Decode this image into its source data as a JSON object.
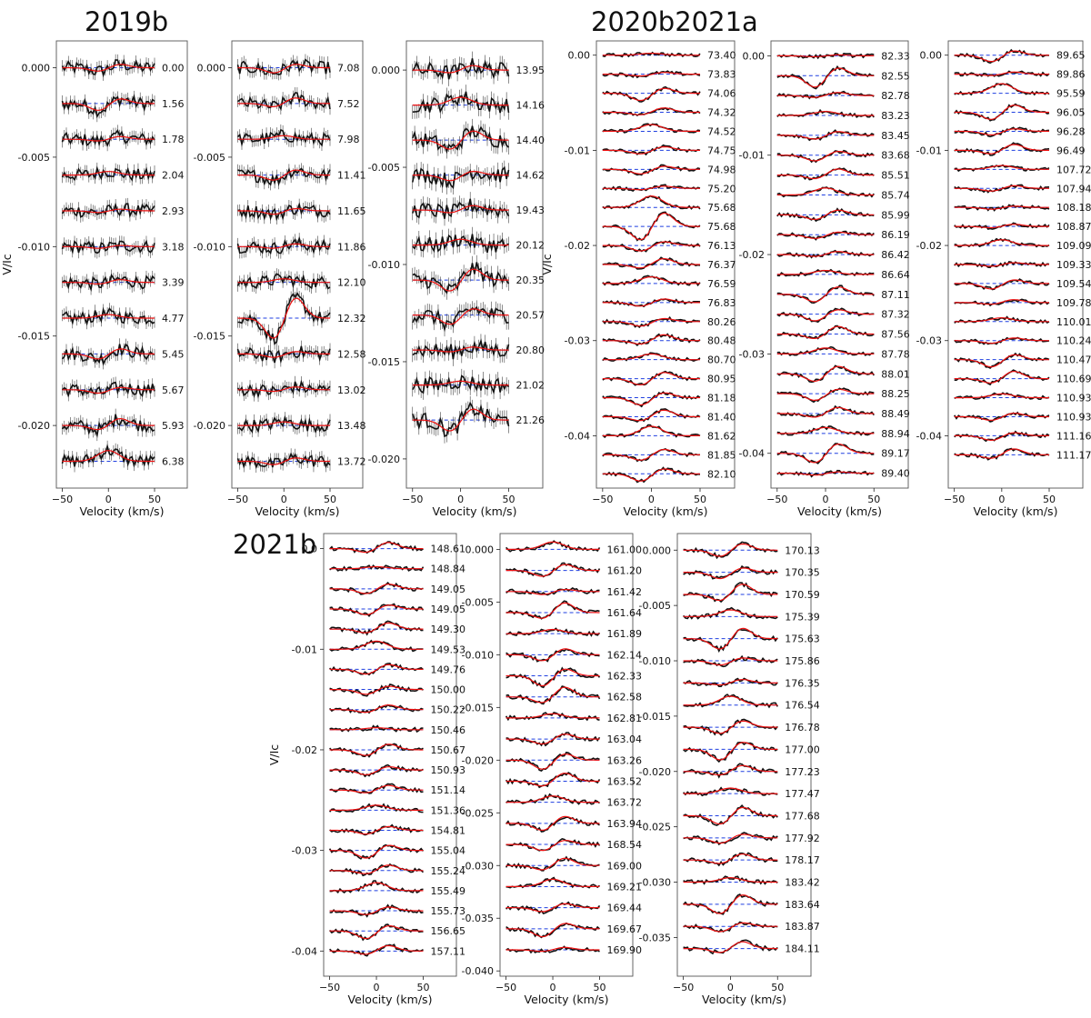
{
  "section_titles": [
    "2019b",
    "2020b2021a",
    "2021b"
  ],
  "chart_data": [
    {
      "type": "line",
      "group": "2019b",
      "xlabel": "Velocity (km/s)",
      "ylabel": "V/Ic",
      "xlim": [
        -50,
        50
      ],
      "ylim": [
        -0.0235,
        0.0015
      ],
      "xticks": [
        -50,
        0,
        50
      ],
      "yticks": [
        0,
        -0.005,
        -0.01,
        -0.015,
        -0.02
      ],
      "ytick_labels": [
        "0.000",
        "-0.005",
        "-0.010",
        "-0.015",
        "-0.020"
      ],
      "offset_step": -0.002,
      "labels": [
        "0.00",
        "1.56",
        "1.78",
        "2.04",
        "2.93",
        "3.18",
        "3.39",
        "4.77",
        "5.45",
        "5.67",
        "5.93",
        "6.38"
      ],
      "feature_amp": [
        0.0002,
        0.0004,
        0.0002,
        0.0002,
        0.0001,
        0.0001,
        0.0002,
        0.0002,
        0.0003,
        0.0002,
        0.0005,
        0.0006
      ],
      "noise": 0.00035,
      "error_bars": true
    },
    {
      "type": "line",
      "group": "2019b",
      "xlabel": "Velocity (km/s)",
      "ylabel": "",
      "xlim": [
        -50,
        50
      ],
      "ylim": [
        -0.0235,
        0.0015
      ],
      "xticks": [
        -50,
        0,
        50
      ],
      "yticks": [
        0,
        -0.005,
        -0.01,
        -0.015,
        -0.02
      ],
      "ytick_labels": [
        "0.000",
        "-0.005",
        "-0.010",
        "-0.015",
        "-0.020"
      ],
      "offset_step": -0.002,
      "labels": [
        "7.08",
        "7.52",
        "7.98",
        "11.41",
        "11.65",
        "11.86",
        "12.10",
        "12.32",
        "12.58",
        "13.02",
        "13.48",
        "13.72"
      ],
      "feature_amp": [
        0.0003,
        0.0004,
        0.0002,
        0.0003,
        0.0002,
        0.0002,
        0.0002,
        0.0012,
        0.0002,
        0.0002,
        0.0002,
        0.0002
      ],
      "noise": 0.00035,
      "error_bars": true
    },
    {
      "type": "line",
      "group": "2019b",
      "xlabel": "Velocity (km/s)",
      "ylabel": "",
      "xlim": [
        -50,
        50
      ],
      "ylim": [
        -0.0215,
        0.0015
      ],
      "xticks": [
        -50,
        0,
        50
      ],
      "yticks": [
        0,
        -0.005,
        -0.01,
        -0.015,
        -0.02
      ],
      "ytick_labels": [
        "0.000",
        "-0.005",
        "-0.010",
        "-0.015",
        "-0.020"
      ],
      "offset_step": -0.0018,
      "labels": [
        "13.95",
        "14.16",
        "14.40",
        "14.62",
        "19.43",
        "20.12",
        "20.35",
        "20.57",
        "20.80",
        "21.02",
        "21.26"
      ],
      "feature_amp": [
        0.0003,
        0.0004,
        0.0005,
        0.0003,
        0.0003,
        0.0003,
        0.0006,
        0.0005,
        0.0002,
        0.0002,
        0.0006
      ],
      "noise": 0.0004,
      "error_bars": true
    },
    {
      "type": "line",
      "group": "2020b2021a",
      "xlabel": "Velocity (km/s)",
      "ylabel": "V/Ic",
      "xlim": [
        -50,
        50
      ],
      "ylim": [
        -0.0455,
        0.0015
      ],
      "xticks": [
        -50,
        0,
        50
      ],
      "yticks": [
        0,
        -0.01,
        -0.02,
        -0.03,
        -0.04
      ],
      "ytick_labels": [
        "0.00",
        "-0.01",
        "-0.02",
        "-0.03",
        "-0.04"
      ],
      "offset_step": -0.002,
      "labels": [
        "73.40",
        "73.83",
        "74.06",
        "74.32",
        "74.52",
        "74.75",
        "74.98",
        "75.20",
        "75.68",
        "75.68",
        "76.13",
        "76.37",
        "76.59",
        "76.83",
        "80.26",
        "80.48",
        "80.70",
        "80.95",
        "81.18",
        "81.40",
        "81.62",
        "81.85",
        "82.10"
      ],
      "feature_amp": [
        0.0002,
        0.0002,
        0.0008,
        0.0006,
        0.0007,
        0.0004,
        0.0005,
        0.0003,
        0.0012,
        0.0015,
        0.0006,
        0.0008,
        0.0007,
        0.0004,
        0.0005,
        0.0008,
        0.0006,
        0.0007,
        0.0008,
        0.0009,
        0.001,
        0.0006,
        0.0008
      ],
      "noise": 0.00018,
      "error_bars": false
    },
    {
      "type": "line",
      "group": "2020b2021a",
      "xlabel": "Velocity (km/s)",
      "ylabel": "",
      "xlim": [
        -50,
        50
      ],
      "ylim": [
        -0.0435,
        0.0015
      ],
      "xticks": [
        -50,
        0,
        50
      ],
      "yticks": [
        0,
        -0.01,
        -0.02,
        -0.03,
        -0.04
      ],
      "ytick_labels": [
        "0.00",
        "-0.01",
        "-0.02",
        "-0.03",
        "-0.04"
      ],
      "offset_step": -0.002,
      "labels": [
        "82.33",
        "82.55",
        "82.78",
        "83.23",
        "83.45",
        "83.68",
        "85.51",
        "85.74",
        "85.99",
        "86.19",
        "86.42",
        "86.64",
        "87.11",
        "87.32",
        "87.56",
        "87.78",
        "88.01",
        "88.25",
        "88.49",
        "88.94",
        "89.17",
        "89.40"
      ],
      "feature_amp": [
        0.0001,
        0.0012,
        0.0004,
        0.0004,
        0.0004,
        0.0006,
        0.0008,
        0.0007,
        0.0005,
        0.0004,
        0.0004,
        0.0004,
        0.0008,
        0.0007,
        0.001,
        0.0006,
        0.0008,
        0.0007,
        0.0008,
        0.0006,
        0.001,
        0.0002
      ],
      "noise": 0.00018,
      "error_bars": false
    },
    {
      "type": "line",
      "group": "2020b2021a",
      "xlabel": "Velocity (km/s)",
      "ylabel": "",
      "xlim": [
        -50,
        50
      ],
      "ylim": [
        -0.0455,
        0.0015
      ],
      "xticks": [
        -50,
        0,
        50
      ],
      "yticks": [
        0,
        -0.01,
        -0.02,
        -0.03,
        -0.04
      ],
      "ytick_labels": [
        "0.00",
        "-0.01",
        "-0.02",
        "-0.03",
        "-0.04"
      ],
      "offset_step": -0.002,
      "labels": [
        "89.65",
        "89.86",
        "95.59",
        "96.05",
        "96.28",
        "96.49",
        "107.72",
        "107.94",
        "108.18",
        "108.87",
        "109.09",
        "109.33",
        "109.54",
        "109.78",
        "110.01",
        "110.24",
        "110.47",
        "110.69",
        "110.93",
        "110.93",
        "111.16",
        "111.17"
      ],
      "feature_amp": [
        0.0007,
        0.0003,
        0.001,
        0.0008,
        0.0004,
        0.0008,
        0.0004,
        0.0003,
        0.0002,
        0.0003,
        0.0006,
        0.0002,
        0.0006,
        0.0004,
        0.0004,
        0.0003,
        0.0008,
        0.001,
        0.0004,
        0.0004,
        0.0005,
        0.0008
      ],
      "noise": 0.00018,
      "error_bars": false
    },
    {
      "type": "line",
      "group": "2021b",
      "xlabel": "Velocity (km/s)",
      "ylabel": "V/Ic",
      "xlim": [
        -50,
        50
      ],
      "ylim": [
        -0.0425,
        0.0015
      ],
      "xticks": [
        -50,
        0,
        50
      ],
      "yticks": [
        0,
        -0.01,
        -0.02,
        -0.03,
        -0.04
      ],
      "ytick_labels": [
        "0.0",
        "-0.01",
        "-0.02",
        "-0.03",
        "-0.04"
      ],
      "offset_step": -0.002,
      "labels": [
        "148.61",
        "148.84",
        "149.05",
        "149.05",
        "149.30",
        "149.53",
        "149.76",
        "150.00",
        "150.22",
        "150.46",
        "150.67",
        "150.93",
        "151.14",
        "151.36",
        "154.81",
        "155.04",
        "155.24",
        "155.49",
        "155.73",
        "156.65",
        "157.11"
      ],
      "feature_amp": [
        0.0008,
        0.0002,
        0.0005,
        0.0006,
        0.0008,
        0.0008,
        0.0005,
        0.0005,
        0.0006,
        0.0002,
        0.0006,
        0.0005,
        0.0006,
        0.0005,
        0.0004,
        0.0008,
        0.0007,
        0.0008,
        0.0004,
        0.0008,
        0.0007
      ],
      "noise": 0.0002,
      "error_bars": false
    },
    {
      "type": "line",
      "group": "2021b",
      "xlabel": "Velocity (km/s)",
      "ylabel": "",
      "xlim": [
        -50,
        50
      ],
      "ylim": [
        -0.0405,
        0.0015
      ],
      "xticks": [
        -50,
        0,
        50
      ],
      "yticks": [
        0,
        -0.005,
        -0.01,
        -0.015,
        -0.02,
        -0.025,
        -0.03,
        -0.035,
        -0.04
      ],
      "ytick_labels": [
        "0.000",
        "-0.005",
        "-0.010",
        "-0.015",
        "-0.020",
        "-0.025",
        "-0.030",
        "-0.035",
        "-0.040"
      ],
      "offset_step": -0.002,
      "labels": [
        "161.00",
        "161.20",
        "161.42",
        "161.64",
        "161.89",
        "162.14",
        "162.33",
        "162.58",
        "162.81",
        "163.04",
        "163.26",
        "163.52",
        "163.72",
        "163.94",
        "168.54",
        "169.00",
        "169.21",
        "169.44",
        "169.67",
        "169.90"
      ],
      "feature_amp": [
        0.0007,
        0.0006,
        0.0003,
        0.0012,
        0.0004,
        0.0006,
        0.001,
        0.0012,
        0.0004,
        0.0005,
        0.0009,
        0.001,
        0.0006,
        0.0007,
        0.0006,
        0.0009,
        0.0007,
        0.0004,
        0.0008,
        0.0003
      ],
      "noise": 0.0002,
      "error_bars": false
    },
    {
      "type": "line",
      "group": "2021b",
      "xlabel": "Velocity (km/s)",
      "ylabel": "",
      "xlim": [
        -50,
        50
      ],
      "ylim": [
        -0.0385,
        0.0015
      ],
      "xticks": [
        -50,
        0,
        50
      ],
      "yticks": [
        0,
        -0.005,
        -0.01,
        -0.015,
        -0.02,
        -0.025,
        -0.03,
        -0.035
      ],
      "ytick_labels": [
        "0.000",
        "-0.005",
        "-0.010",
        "-0.015",
        "-0.020",
        "-0.025",
        "-0.030",
        "-0.035"
      ],
      "offset_step": -0.002,
      "labels": [
        "170.13",
        "170.35",
        "170.59",
        "175.39",
        "175.63",
        "175.86",
        "176.35",
        "176.54",
        "176.78",
        "177.00",
        "177.23",
        "177.47",
        "177.68",
        "177.92",
        "178.17",
        "183.42",
        "183.64",
        "183.87",
        "184.11"
      ],
      "feature_amp": [
        0.0006,
        0.0006,
        0.0012,
        0.0006,
        0.001,
        0.0004,
        0.0004,
        0.0008,
        0.0006,
        0.001,
        0.0007,
        0.0005,
        0.0008,
        0.0005,
        0.0007,
        0.0004,
        0.0009,
        0.0005,
        0.0008
      ],
      "noise": 0.0002,
      "error_bars": false
    }
  ],
  "colors": {
    "data": "#111111",
    "model": "#ee1111",
    "zero_line": "#1f3fe0",
    "frame": "#555555",
    "text": "#111111"
  }
}
